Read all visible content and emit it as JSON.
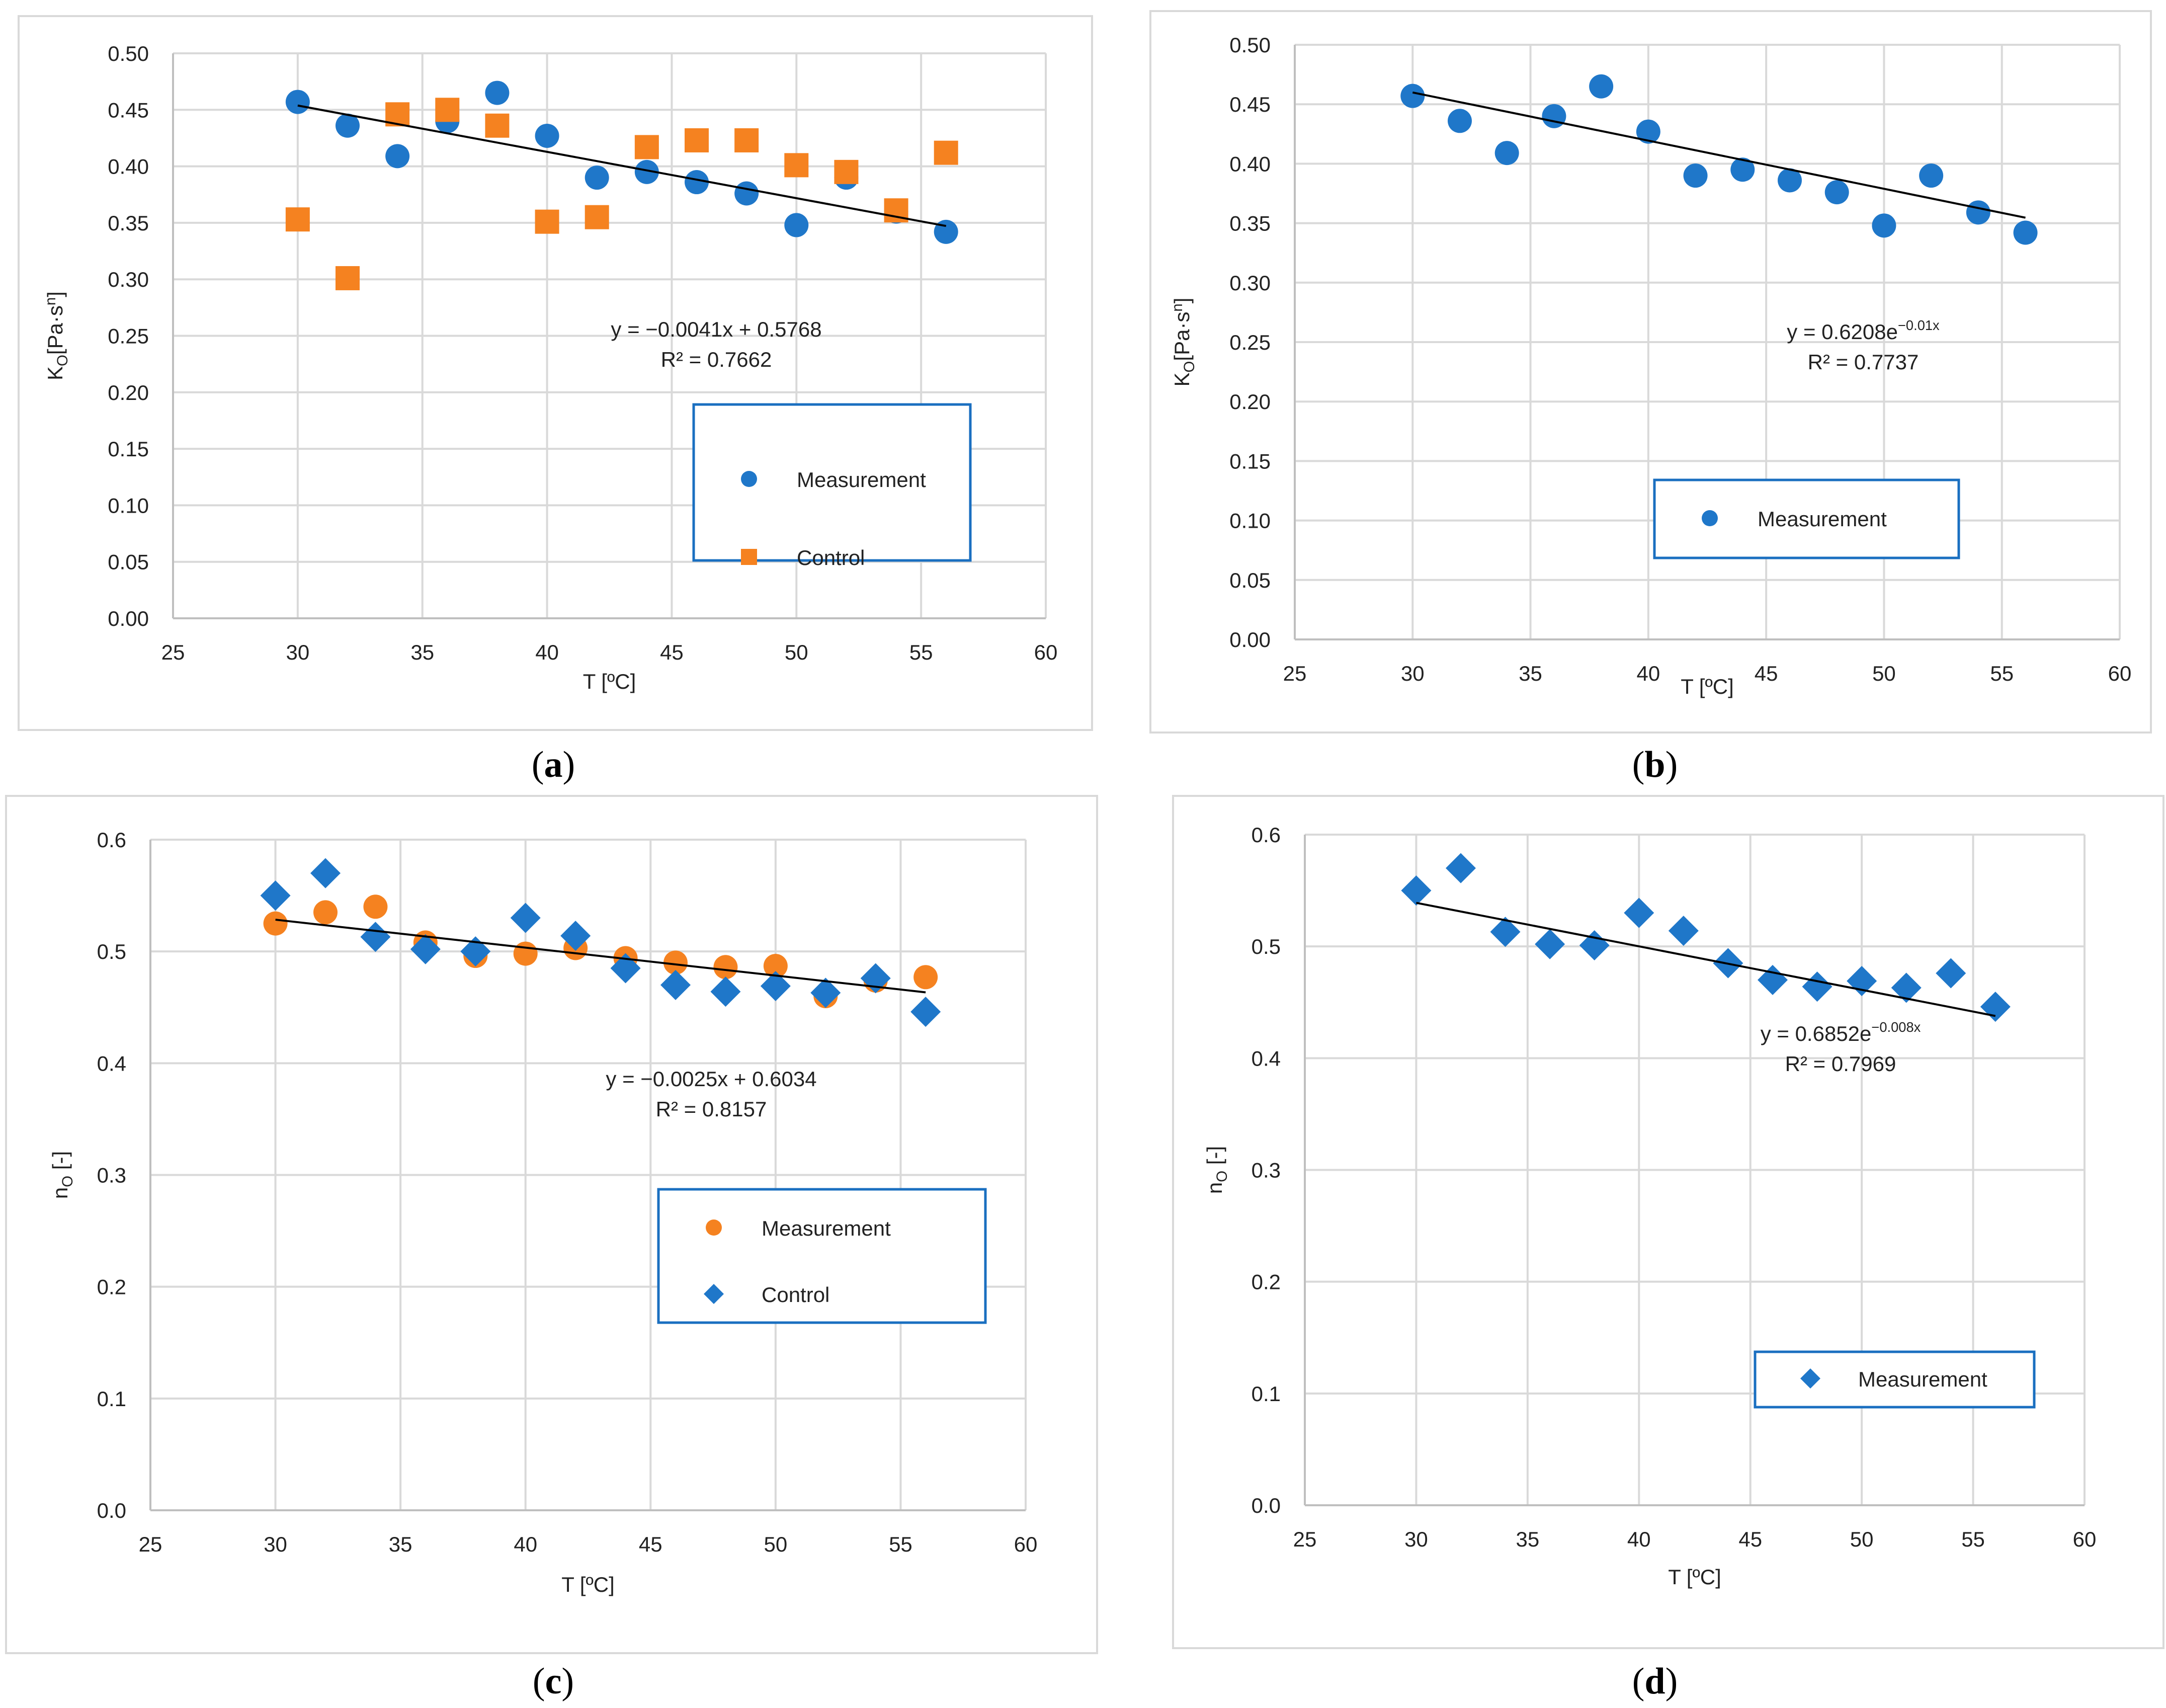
{
  "colors": {
    "blue": "#1f77c9",
    "blue_dark": "#0e5aa8",
    "orange": "#f58220",
    "grid": "#d9d9d9",
    "axis": "#bfbfbf",
    "frame": "#d9d9d9",
    "legend_border": "#1a6fc0",
    "text": "#222222"
  },
  "chart_data": [
    {
      "panel_label": "a",
      "caption_prefix": "(",
      "caption_suffix": ")",
      "type": "scatter",
      "xlabel": "T [ºC]",
      "ylabel": "K_O[Pa·s^n]",
      "ylabel_main": "K",
      "ylabel_sub": "O",
      "ylabel_mid": "[Pa·s",
      "ylabel_sup": "n",
      "ylabel_end": "]",
      "xlim": [
        25,
        60
      ],
      "ylim": [
        0,
        0.5
      ],
      "xticks": [
        25,
        30,
        35,
        40,
        45,
        50,
        55,
        60
      ],
      "yticks": [
        0.0,
        0.05,
        0.1,
        0.15,
        0.2,
        0.25,
        0.3,
        0.35,
        0.4,
        0.45,
        0.5
      ],
      "ytick_decimals": 2,
      "series": [
        {
          "name": "Measurement",
          "marker": "circle",
          "color": "#1f77c9",
          "x": [
            30,
            32,
            34,
            36,
            38,
            40,
            42,
            44,
            46,
            48,
            50,
            52,
            54,
            56
          ],
          "y": [
            0.457,
            0.436,
            0.409,
            0.44,
            0.465,
            0.427,
            0.39,
            0.395,
            0.386,
            0.376,
            0.348,
            0.39,
            0.36,
            0.342
          ]
        },
        {
          "name": "Control",
          "marker": "square",
          "color": "#f58220",
          "x": [
            30,
            32,
            34,
            36,
            38,
            40,
            42,
            44,
            46,
            48,
            50,
            52,
            54,
            56
          ],
          "y": [
            0.353,
            0.301,
            0.446,
            0.45,
            0.436,
            0.351,
            0.355,
            0.417,
            0.423,
            0.423,
            0.401,
            0.395,
            0.361,
            0.412
          ]
        }
      ],
      "trendline": {
        "kind": "linear",
        "slope": -0.0041,
        "intercept": 0.5768,
        "x_range": [
          30,
          56
        ]
      },
      "equation": "y = −0.0041x + 0.5768",
      "r2": "R² = 0.7662"
    },
    {
      "panel_label": "b",
      "caption_prefix": "(",
      "caption_suffix": ")",
      "type": "scatter",
      "xlabel": "T [ºC]",
      "ylabel_main": "K",
      "ylabel_sub": "O",
      "ylabel_mid": "[Pa·s",
      "ylabel_sup": "n",
      "ylabel_end": "]",
      "xlim": [
        25,
        60
      ],
      "ylim": [
        0,
        0.5
      ],
      "xticks": [
        25,
        30,
        35,
        40,
        45,
        50,
        55,
        60
      ],
      "yticks": [
        0.0,
        0.05,
        0.1,
        0.15,
        0.2,
        0.25,
        0.3,
        0.35,
        0.4,
        0.45,
        0.5
      ],
      "ytick_decimals": 2,
      "series": [
        {
          "name": "Measurement",
          "marker": "circle",
          "color": "#1f77c9",
          "x": [
            30,
            32,
            34,
            36,
            38,
            40,
            42,
            44,
            46,
            48,
            50,
            52,
            54,
            56
          ],
          "y": [
            0.457,
            0.436,
            0.409,
            0.44,
            0.465,
            0.427,
            0.39,
            0.395,
            0.386,
            0.376,
            0.348,
            0.39,
            0.359,
            0.342
          ]
        }
      ],
      "trendline": {
        "kind": "exponential",
        "a": 0.6208,
        "b": -0.01,
        "x_range": [
          30,
          56
        ]
      },
      "equation_base": "y = 0.6208e",
      "equation_exp": "−0.01x",
      "r2": "R² = 0.7737"
    },
    {
      "panel_label": "c",
      "caption_prefix": "(",
      "caption_suffix": ")",
      "type": "scatter",
      "xlabel": "T [ºC]",
      "ylabel_main": "n",
      "ylabel_sub": "O",
      "ylabel_mid": " [-]",
      "ylabel_sup": "",
      "ylabel_end": "",
      "xlim": [
        25,
        60
      ],
      "ylim": [
        0,
        0.6
      ],
      "xticks": [
        25,
        30,
        35,
        40,
        45,
        50,
        55,
        60
      ],
      "yticks": [
        0.0,
        0.1,
        0.2,
        0.3,
        0.4,
        0.5,
        0.6
      ],
      "ytick_decimals": 1,
      "series": [
        {
          "name": "Measurement",
          "marker": "circle",
          "color": "#f58220",
          "x": [
            30,
            32,
            34,
            36,
            38,
            40,
            42,
            44,
            46,
            48,
            50,
            52,
            54,
            56
          ],
          "y": [
            0.525,
            0.535,
            0.54,
            0.508,
            0.496,
            0.498,
            0.503,
            0.494,
            0.49,
            0.486,
            0.487,
            0.46,
            0.474,
            0.477
          ]
        },
        {
          "name": "Control",
          "marker": "diamond",
          "color": "#1f77c9",
          "x": [
            30,
            32,
            34,
            36,
            38,
            40,
            42,
            44,
            46,
            48,
            50,
            52,
            54,
            56
          ],
          "y": [
            0.55,
            0.57,
            0.513,
            0.502,
            0.5,
            0.53,
            0.514,
            0.485,
            0.47,
            0.464,
            0.469,
            0.463,
            0.476,
            0.446
          ]
        }
      ],
      "trendline": {
        "kind": "linear",
        "slope": -0.0025,
        "intercept": 0.6034,
        "x_range": [
          30,
          56
        ]
      },
      "equation": "y = −0.0025x + 0.6034",
      "r2": "R² = 0.8157"
    },
    {
      "panel_label": "d",
      "caption_prefix": "(",
      "caption_suffix": ")",
      "type": "scatter",
      "xlabel": "T [ºC]",
      "ylabel_main": "n",
      "ylabel_sub": "O",
      "ylabel_mid": " [-]",
      "ylabel_sup": "",
      "ylabel_end": "",
      "xlim": [
        25,
        60
      ],
      "ylim": [
        0,
        0.6
      ],
      "xticks": [
        25,
        30,
        35,
        40,
        45,
        50,
        55,
        60
      ],
      "yticks": [
        0.0,
        0.1,
        0.2,
        0.3,
        0.4,
        0.5,
        0.6
      ],
      "ytick_decimals": 1,
      "series": [
        {
          "name": "Measurement",
          "marker": "diamond",
          "color": "#1f77c9",
          "x": [
            30,
            32,
            34,
            36,
            38,
            40,
            42,
            44,
            46,
            48,
            50,
            52,
            54,
            56
          ],
          "y": [
            0.55,
            0.57,
            0.513,
            0.502,
            0.501,
            0.53,
            0.514,
            0.485,
            0.47,
            0.464,
            0.469,
            0.463,
            0.476,
            0.446
          ]
        }
      ],
      "trendline": {
        "kind": "exponential",
        "a": 0.6852,
        "b": -0.008,
        "x_range": [
          30,
          56
        ]
      },
      "equation_base": "y = 0.6852e",
      "equation_exp": "−0.008x",
      "r2": "R² = 0.7969"
    }
  ]
}
